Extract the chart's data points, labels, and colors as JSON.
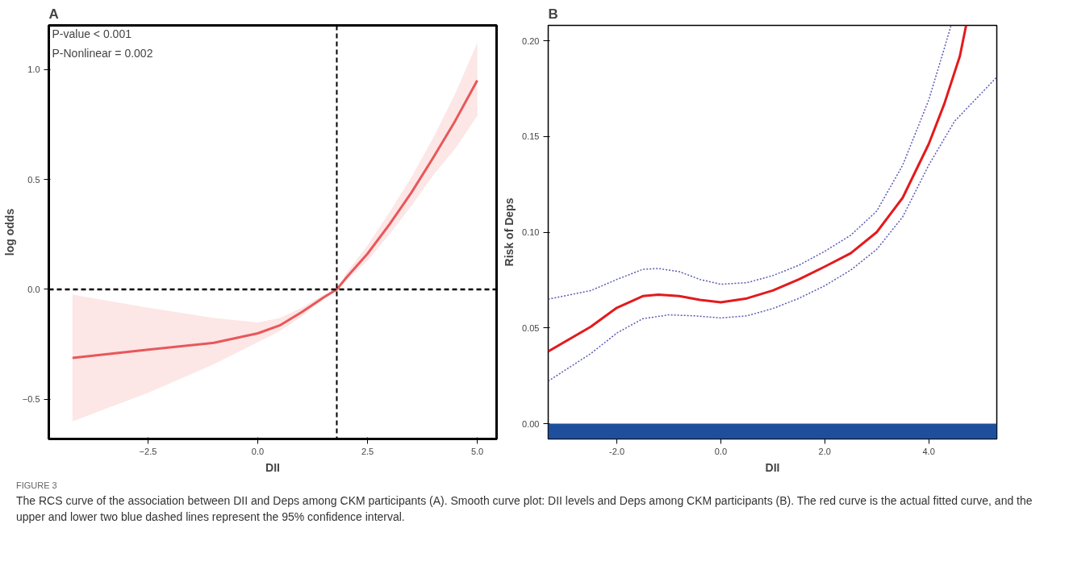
{
  "chart_data": [
    {
      "type": "line",
      "title": "A",
      "xlabel": "DII",
      "ylabel": "log odds",
      "annotations": [
        "P-value < 0.001",
        "P-Nonlinear = 0.002"
      ],
      "xlim": [
        -4.76,
        5.44
      ],
      "ylim": [
        -0.68,
        1.2
      ],
      "xticks": [
        {
          "value": -2.5,
          "label": "−2.5"
        },
        {
          "value": 0,
          "label": "0.0"
        },
        2.5,
        {
          "value": 5,
          "label": "5.0"
        }
      ],
      "yticks": [
        {
          "value": -0.5,
          "label": "−0.5"
        },
        {
          "value": 0,
          "label": "0.0"
        },
        0.5,
        {
          "value": 1,
          "label": "1.0"
        }
      ],
      "grid": false,
      "line_style": "solid",
      "ref_lines": [
        {
          "axis": "x",
          "value": 1.8,
          "color": "#000000",
          "line_style": "dashed"
        },
        {
          "axis": "y",
          "value": 0.0,
          "color": "#000000",
          "line_style": "dashed"
        }
      ],
      "series": [
        {
          "color": "#e8575a",
          "x": [
            -4.22,
            -2.5,
            -1,
            0,
            0.5,
            1,
            1.5,
            1.8,
            2,
            2.5,
            3,
            3.5,
            4,
            4.5,
            5
          ],
          "values": [
            -0.312,
            -0.274,
            -0.243,
            -0.2,
            -0.164,
            -0.104,
            -0.037,
            0,
            0.049,
            0.162,
            0.295,
            0.44,
            0.6,
            0.767,
            0.95
          ],
          "lower": [
            -0.6,
            -0.47,
            -0.34,
            -0.24,
            -0.19,
            -0.124,
            -0.044,
            0,
            0.036,
            0.13,
            0.25,
            0.38,
            0.52,
            0.64,
            0.79
          ],
          "upper": [
            -0.024,
            -0.084,
            -0.13,
            -0.15,
            -0.13,
            -0.084,
            -0.024,
            0,
            0.069,
            0.2,
            0.35,
            0.51,
            0.69,
            0.89,
            1.12
          ]
        }
      ]
    },
    {
      "type": "line",
      "title": "B",
      "xlabel": "DII",
      "ylabel": "Risk of Deps",
      "annotations": [
        "FIGURE 3",
        "The RCS curve of the association between DII and Deps among CKM participants (A). Smooth curve plot: DII levels and Deps among CKM participants (B). The red curve is the actual fitted curve, and the upper and lower two blue dashed lines represent the 95% confidence interval."
      ],
      "xlim": [
        -3.32,
        5.31
      ],
      "ylim": [
        -0.008,
        0.208
      ],
      "xticks": [
        {
          "value": -2,
          "label": "-2.0"
        },
        {
          "value": 0,
          "label": "0.0"
        },
        {
          "value": 2,
          "label": "2.0"
        },
        {
          "value": 4,
          "label": "4.0"
        }
      ],
      "yticks": [
        {
          "value": 0,
          "label": "0.00"
        },
        0.05,
        {
          "value": 0.1,
          "label": "0.10"
        },
        0.15,
        {
          "value": 0.2,
          "label": "0.20"
        }
      ],
      "grid": false,
      "bands": [
        {
          "axis": "y",
          "from": -0.008,
          "to": 0.0,
          "color": "#1f4e9c"
        }
      ],
      "series": [
        {
          "color": "#e31a1c",
          "line_style": "solid",
          "x": [
            -3.32,
            -2.5,
            -2,
            -1.5,
            -1.2,
            -0.8,
            -0.4,
            0,
            0.5,
            1,
            1.5,
            2,
            2.5,
            3,
            3.5,
            4,
            4.3,
            4.6,
            4.72
          ],
          "values": [
            0.0377,
            0.0506,
            0.0605,
            0.0666,
            0.0674,
            0.0666,
            0.0646,
            0.0634,
            0.0654,
            0.0695,
            0.0753,
            0.082,
            0.089,
            0.1,
            0.118,
            0.146,
            0.167,
            0.192,
            0.208
          ]
        },
        {
          "color": "#5a5ab4",
          "line_style": "dotted",
          "x": [
            -3.32,
            -2.5,
            -2,
            -1.5,
            -1.2,
            -0.8,
            -0.4,
            0,
            0.5,
            1,
            1.5,
            2,
            2.5,
            3,
            3.5,
            4,
            4.3,
            4.43
          ],
          "values": [
            0.065,
            0.0695,
            0.0753,
            0.0806,
            0.081,
            0.0794,
            0.0753,
            0.0728,
            0.0736,
            0.0773,
            0.0827,
            0.09,
            0.0984,
            0.111,
            0.135,
            0.169,
            0.196,
            0.208
          ]
        },
        {
          "color": "#5a5ab4",
          "line_style": "dotted",
          "x": [
            -3.32,
            -2.5,
            -2,
            -1.5,
            -1,
            -0.5,
            0,
            0.5,
            1,
            1.5,
            2,
            2.5,
            3,
            3.5,
            4,
            4.5,
            5.31
          ],
          "values": [
            0.0222,
            0.0366,
            0.0473,
            0.0548,
            0.0568,
            0.0563,
            0.0552,
            0.0563,
            0.0601,
            0.0654,
            0.072,
            0.0802,
            0.091,
            0.108,
            0.135,
            0.158,
            0.181
          ]
        }
      ]
    }
  ]
}
